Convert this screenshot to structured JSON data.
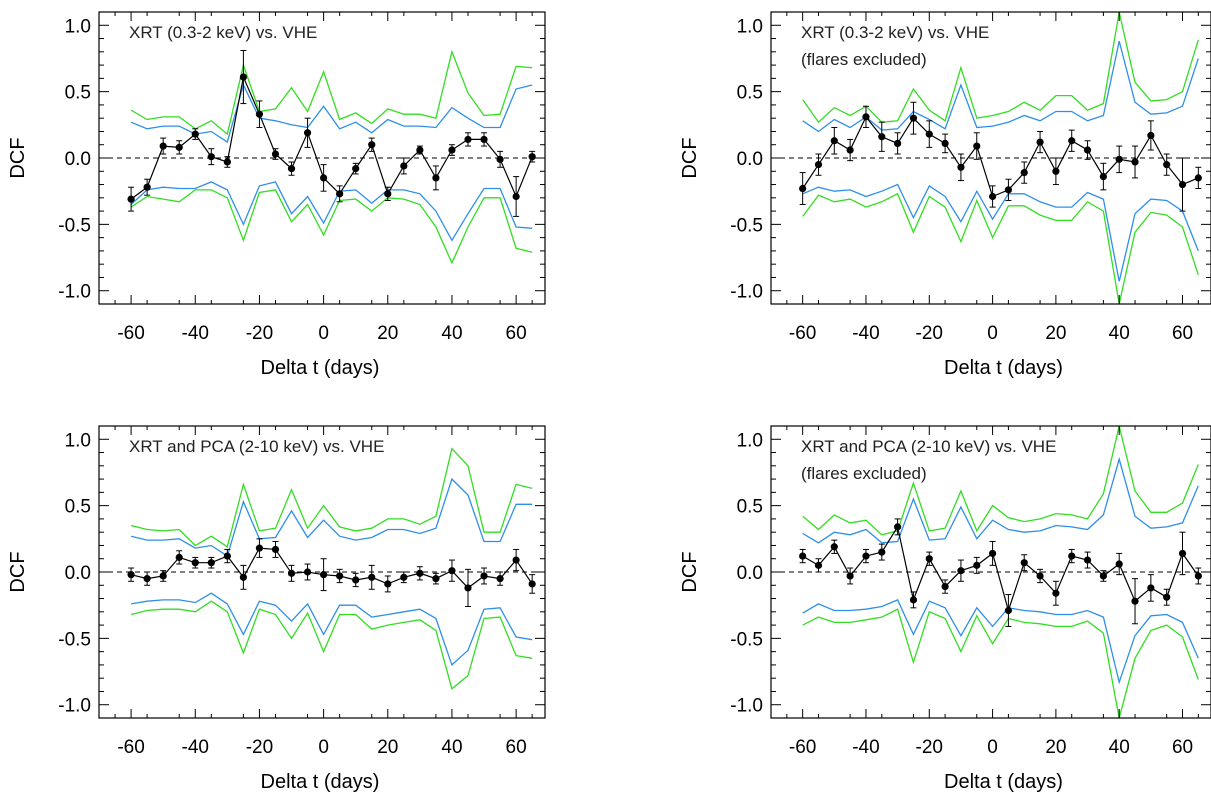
{
  "figure": {
    "colors": {
      "data": "#000000",
      "band_inner": "#2f8fe8",
      "band_outer": "#33dd22",
      "zero_line": "#000000"
    }
  },
  "chart_data": [
    {
      "type": "line",
      "title": "XRT (0.3-2 keV) vs. VHE",
      "subtitle": "",
      "xlabel": "Delta t (days)",
      "ylabel": "DCF",
      "xlim": [
        -70,
        69
      ],
      "ylim": [
        -1.1,
        1.1
      ],
      "xticks": [
        "-60",
        "-40",
        "-20",
        "0",
        "20",
        "40",
        "60"
      ],
      "yticks": [
        "-1.0",
        "-0.5",
        "0.0",
        "0.5",
        "1.0"
      ],
      "grid": false,
      "x": [
        -60,
        -55,
        -50,
        -45,
        -40,
        -35,
        -30,
        -25,
        -20,
        -15,
        -10,
        -5,
        0,
        5,
        10,
        15,
        20,
        25,
        30,
        35,
        40,
        45,
        50,
        55,
        60,
        65
      ],
      "series": [
        {
          "role": "dcf",
          "values": [
            -0.31,
            -0.22,
            0.09,
            0.08,
            0.18,
            0.01,
            -0.03,
            0.61,
            0.33,
            0.03,
            -0.08,
            0.19,
            -0.15,
            -0.27,
            -0.08,
            0.1,
            -0.27,
            -0.06,
            0.06,
            -0.15,
            0.06,
            0.14,
            0.14,
            -0.01,
            -0.29,
            0.01
          ],
          "errors": [
            0.09,
            0.06,
            0.06,
            0.05,
            0.04,
            0.06,
            0.04,
            0.2,
            0.1,
            0.04,
            0.05,
            0.11,
            0.1,
            0.06,
            0.04,
            0.05,
            0.05,
            0.06,
            0.03,
            0.09,
            0.04,
            0.05,
            0.05,
            0.06,
            0.15,
            0.04
          ]
        },
        {
          "role": "band_inner_upper",
          "values": [
            0.27,
            0.22,
            0.24,
            0.24,
            0.18,
            0.2,
            0.12,
            0.55,
            0.3,
            0.28,
            0.25,
            0.23,
            0.39,
            0.22,
            0.27,
            0.19,
            0.29,
            0.24,
            0.24,
            0.23,
            0.38,
            0.3,
            0.23,
            0.23,
            0.52,
            0.55
          ]
        },
        {
          "role": "band_inner_lower",
          "values": [
            -0.35,
            -0.24,
            -0.22,
            -0.23,
            -0.23,
            -0.18,
            -0.24,
            -0.5,
            -0.21,
            -0.18,
            -0.42,
            -0.29,
            -0.49,
            -0.25,
            -0.24,
            -0.34,
            -0.24,
            -0.24,
            -0.27,
            -0.4,
            -0.62,
            -0.42,
            -0.23,
            -0.23,
            -0.52,
            -0.53
          ]
        },
        {
          "role": "band_outer_upper",
          "values": [
            0.36,
            0.29,
            0.31,
            0.31,
            0.22,
            0.28,
            0.18,
            0.7,
            0.35,
            0.37,
            0.53,
            0.35,
            0.65,
            0.29,
            0.34,
            0.26,
            0.37,
            0.33,
            0.33,
            0.3,
            0.8,
            0.49,
            0.32,
            0.33,
            0.69,
            0.68
          ]
        },
        {
          "role": "band_outer_lower",
          "values": [
            -0.37,
            -0.29,
            -0.31,
            -0.33,
            -0.24,
            -0.24,
            -0.3,
            -0.62,
            -0.26,
            -0.24,
            -0.48,
            -0.35,
            -0.58,
            -0.32,
            -0.31,
            -0.4,
            -0.3,
            -0.31,
            -0.35,
            -0.52,
            -0.79,
            -0.52,
            -0.3,
            -0.3,
            -0.68,
            -0.71
          ]
        }
      ]
    },
    {
      "type": "line",
      "title": "XRT (0.3-2 keV) vs. VHE",
      "subtitle": "(flares excluded)",
      "xlabel": "Delta t (days)",
      "ylabel": "DCF",
      "xlim": [
        -70,
        69
      ],
      "ylim": [
        -1.1,
        1.1
      ],
      "xticks": [
        "-60",
        "-40",
        "-20",
        "0",
        "20",
        "40",
        "60"
      ],
      "yticks": [
        "-1.0",
        "-0.5",
        "0.0",
        "0.5",
        "1.0"
      ],
      "grid": false,
      "x": [
        -60,
        -55,
        -50,
        -45,
        -40,
        -35,
        -30,
        -25,
        -20,
        -15,
        -10,
        -5,
        0,
        5,
        10,
        15,
        20,
        25,
        30,
        35,
        40,
        45,
        50,
        55,
        60,
        65
      ],
      "series": [
        {
          "role": "dcf",
          "values": [
            -0.23,
            -0.05,
            0.13,
            0.06,
            0.31,
            0.16,
            0.11,
            0.3,
            0.18,
            0.11,
            -0.07,
            0.09,
            -0.29,
            -0.24,
            -0.11,
            0.12,
            -0.1,
            0.13,
            0.06,
            -0.14,
            -0.01,
            -0.03,
            0.17,
            -0.05,
            -0.2,
            -0.15
          ],
          "errors": [
            0.12,
            0.08,
            0.1,
            0.08,
            0.08,
            0.11,
            0.08,
            0.12,
            0.1,
            0.07,
            0.1,
            0.1,
            0.08,
            0.08,
            0.08,
            0.08,
            0.1,
            0.08,
            0.07,
            0.1,
            0.1,
            0.12,
            0.11,
            0.08,
            0.2,
            0.08
          ]
        },
        {
          "role": "band_inner_upper",
          "values": [
            0.28,
            0.2,
            0.29,
            0.23,
            0.31,
            0.21,
            0.22,
            0.35,
            0.29,
            0.22,
            0.55,
            0.23,
            0.24,
            0.27,
            0.32,
            0.28,
            0.35,
            0.35,
            0.28,
            0.32,
            0.88,
            0.42,
            0.33,
            0.34,
            0.39,
            0.75
          ]
        },
        {
          "role": "band_inner_lower",
          "values": [
            -0.27,
            -0.22,
            -0.25,
            -0.24,
            -0.29,
            -0.25,
            -0.2,
            -0.45,
            -0.21,
            -0.29,
            -0.48,
            -0.25,
            -0.46,
            -0.27,
            -0.27,
            -0.33,
            -0.37,
            -0.37,
            -0.26,
            -0.31,
            -0.93,
            -0.42,
            -0.31,
            -0.32,
            -0.4,
            -0.7
          ]
        },
        {
          "role": "band_outer_upper",
          "values": [
            0.44,
            0.27,
            0.38,
            0.32,
            0.39,
            0.27,
            0.28,
            0.52,
            0.36,
            0.28,
            0.68,
            0.3,
            0.32,
            0.35,
            0.42,
            0.36,
            0.47,
            0.47,
            0.36,
            0.41,
            1.1,
            0.57,
            0.43,
            0.44,
            0.5,
            0.89
          ]
        },
        {
          "role": "band_outer_lower",
          "values": [
            -0.44,
            -0.28,
            -0.33,
            -0.31,
            -0.37,
            -0.33,
            -0.27,
            -0.56,
            -0.29,
            -0.37,
            -0.63,
            -0.32,
            -0.6,
            -0.36,
            -0.36,
            -0.43,
            -0.47,
            -0.47,
            -0.33,
            -0.4,
            -1.1,
            -0.56,
            -0.41,
            -0.43,
            -0.52,
            -0.88
          ]
        }
      ]
    },
    {
      "type": "line",
      "title": "XRT and PCA (2-10 keV) vs. VHE",
      "subtitle": "",
      "xlabel": "Delta t (days)",
      "ylabel": "DCF",
      "xlim": [
        -70,
        69
      ],
      "ylim": [
        -1.1,
        1.1
      ],
      "xticks": [
        "-60",
        "-40",
        "-20",
        "0",
        "20",
        "40",
        "60"
      ],
      "yticks": [
        "-1.0",
        "-0.5",
        "0.0",
        "0.5",
        "1.0"
      ],
      "grid": false,
      "x": [
        -60,
        -55,
        -50,
        -45,
        -40,
        -35,
        -30,
        -25,
        -20,
        -15,
        -10,
        -5,
        0,
        5,
        10,
        15,
        20,
        25,
        30,
        35,
        40,
        45,
        50,
        55,
        60,
        65
      ],
      "series": [
        {
          "role": "dcf",
          "values": [
            -0.02,
            -0.05,
            -0.03,
            0.11,
            0.07,
            0.07,
            0.12,
            -0.04,
            0.18,
            0.17,
            -0.01,
            0.0,
            -0.02,
            -0.03,
            -0.06,
            -0.04,
            -0.09,
            -0.04,
            -0.01,
            -0.05,
            0.01,
            -0.12,
            -0.03,
            -0.05,
            0.09,
            -0.09
          ],
          "errors": [
            0.05,
            0.05,
            0.04,
            0.05,
            0.04,
            0.04,
            0.05,
            0.09,
            0.07,
            0.06,
            0.06,
            0.06,
            0.12,
            0.05,
            0.05,
            0.09,
            0.06,
            0.04,
            0.05,
            0.04,
            0.08,
            0.14,
            0.06,
            0.05,
            0.08,
            0.07
          ]
        },
        {
          "role": "band_inner_upper",
          "values": [
            0.27,
            0.24,
            0.24,
            0.25,
            0.18,
            0.2,
            0.12,
            0.53,
            0.25,
            0.26,
            0.46,
            0.26,
            0.39,
            0.27,
            0.24,
            0.26,
            0.32,
            0.32,
            0.29,
            0.33,
            0.7,
            0.58,
            0.23,
            0.23,
            0.51,
            0.51
          ]
        },
        {
          "role": "band_inner_lower",
          "values": [
            -0.24,
            -0.22,
            -0.21,
            -0.21,
            -0.23,
            -0.16,
            -0.24,
            -0.47,
            -0.22,
            -0.25,
            -0.37,
            -0.24,
            -0.47,
            -0.25,
            -0.25,
            -0.34,
            -0.32,
            -0.3,
            -0.28,
            -0.35,
            -0.7,
            -0.59,
            -0.28,
            -0.27,
            -0.49,
            -0.51
          ]
        },
        {
          "role": "band_outer_upper",
          "values": [
            0.35,
            0.32,
            0.31,
            0.32,
            0.2,
            0.27,
            0.19,
            0.66,
            0.31,
            0.33,
            0.62,
            0.33,
            0.5,
            0.34,
            0.31,
            0.33,
            0.4,
            0.4,
            0.36,
            0.42,
            0.93,
            0.8,
            0.3,
            0.3,
            0.66,
            0.63
          ]
        },
        {
          "role": "band_outer_lower",
          "values": [
            -0.32,
            -0.29,
            -0.28,
            -0.28,
            -0.3,
            -0.22,
            -0.3,
            -0.61,
            -0.28,
            -0.32,
            -0.5,
            -0.31,
            -0.6,
            -0.32,
            -0.32,
            -0.43,
            -0.4,
            -0.38,
            -0.36,
            -0.44,
            -0.88,
            -0.78,
            -0.35,
            -0.34,
            -0.63,
            -0.65
          ]
        }
      ]
    },
    {
      "type": "line",
      "title": "XRT and PCA (2-10 keV) vs. VHE",
      "subtitle": "(flares excluded)",
      "xlabel": "Delta t (days)",
      "ylabel": "DCF",
      "xlim": [
        -70,
        69
      ],
      "ylim": [
        -1.1,
        1.1
      ],
      "xticks": [
        "-60",
        "-40",
        "-20",
        "0",
        "20",
        "40",
        "60"
      ],
      "yticks": [
        "-1.0",
        "-0.5",
        "0.0",
        "0.5",
        "1.0"
      ],
      "grid": false,
      "x": [
        -60,
        -55,
        -50,
        -45,
        -40,
        -35,
        -30,
        -25,
        -20,
        -15,
        -10,
        -5,
        0,
        5,
        10,
        15,
        20,
        25,
        30,
        35,
        40,
        45,
        50,
        55,
        60,
        65
      ],
      "series": [
        {
          "role": "dcf",
          "values": [
            0.12,
            0.05,
            0.19,
            -0.03,
            0.12,
            0.15,
            0.34,
            -0.21,
            0.1,
            -0.11,
            0.01,
            0.05,
            0.14,
            -0.29,
            0.07,
            -0.03,
            -0.16,
            0.12,
            0.09,
            -0.03,
            0.06,
            -0.22,
            -0.12,
            -0.19,
            0.14,
            -0.03
          ],
          "errors": [
            0.05,
            0.05,
            0.05,
            0.06,
            0.05,
            0.06,
            0.06,
            0.06,
            0.05,
            0.05,
            0.08,
            0.06,
            0.09,
            0.12,
            0.06,
            0.05,
            0.09,
            0.05,
            0.06,
            0.04,
            0.08,
            0.17,
            0.1,
            0.06,
            0.16,
            0.06
          ]
        },
        {
          "role": "band_inner_upper",
          "values": [
            0.29,
            0.22,
            0.3,
            0.28,
            0.32,
            0.22,
            0.23,
            0.55,
            0.24,
            0.25,
            0.49,
            0.25,
            0.39,
            0.32,
            0.3,
            0.31,
            0.35,
            0.34,
            0.32,
            0.43,
            0.85,
            0.42,
            0.33,
            0.34,
            0.37,
            0.65
          ]
        },
        {
          "role": "band_inner_lower",
          "values": [
            -0.31,
            -0.24,
            -0.29,
            -0.29,
            -0.28,
            -0.26,
            -0.21,
            -0.47,
            -0.22,
            -0.27,
            -0.48,
            -0.27,
            -0.41,
            -0.27,
            -0.29,
            -0.3,
            -0.32,
            -0.32,
            -0.29,
            -0.34,
            -0.83,
            -0.48,
            -0.33,
            -0.32,
            -0.38,
            -0.65
          ]
        },
        {
          "role": "band_outer_upper",
          "values": [
            0.42,
            0.32,
            0.43,
            0.37,
            0.39,
            0.28,
            0.31,
            0.67,
            0.31,
            0.33,
            0.61,
            0.31,
            0.5,
            0.41,
            0.38,
            0.4,
            0.44,
            0.43,
            0.4,
            0.59,
            1.1,
            0.61,
            0.45,
            0.45,
            0.52,
            0.81
          ]
        },
        {
          "role": "band_outer_lower",
          "values": [
            -0.4,
            -0.34,
            -0.38,
            -0.38,
            -0.36,
            -0.34,
            -0.28,
            -0.68,
            -0.3,
            -0.35,
            -0.6,
            -0.33,
            -0.54,
            -0.35,
            -0.38,
            -0.39,
            -0.41,
            -0.41,
            -0.37,
            -0.46,
            -1.1,
            -0.65,
            -0.44,
            -0.4,
            -0.49,
            -0.81
          ]
        }
      ]
    }
  ]
}
